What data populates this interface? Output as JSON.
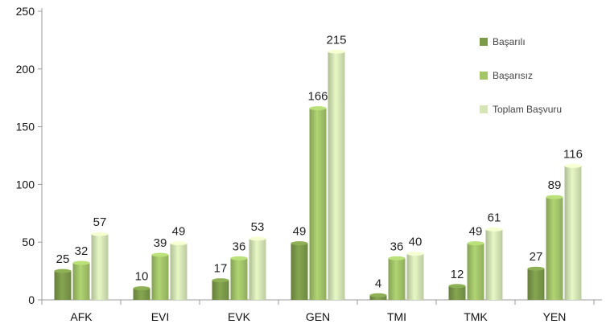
{
  "chart_data": {
    "type": "bar",
    "title": "",
    "xlabel": "",
    "ylabel": "",
    "ylim": [
      0,
      250
    ],
    "yticks": [
      0,
      50,
      100,
      150,
      200,
      250
    ],
    "categories": [
      "AFK",
      "EVI",
      "EVK",
      "GEN",
      "TMI",
      "TMK",
      "YEN"
    ],
    "series": [
      {
        "name": "Başarılı",
        "color": "#7c9a4a",
        "values": [
          25,
          10,
          17,
          49,
          4,
          12,
          27
        ]
      },
      {
        "name": "Başarısız",
        "color": "#a3c46a",
        "values": [
          32,
          39,
          36,
          166,
          36,
          49,
          89
        ]
      },
      {
        "name": "Toplam Başvuru",
        "color": "#d6e6b6",
        "values": [
          57,
          49,
          53,
          215,
          40,
          61,
          116
        ]
      }
    ],
    "legend_position": "top-right",
    "grid": false
  }
}
